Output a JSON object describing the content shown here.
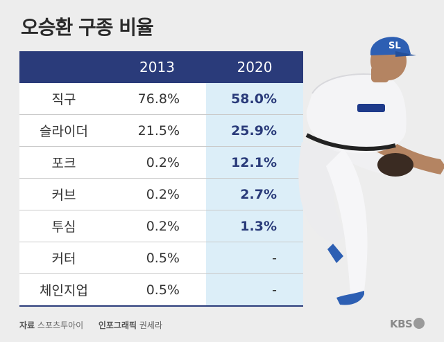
{
  "title": "오승환 구종 비율",
  "chart_data": {
    "type": "table",
    "columns": [
      "",
      "2013",
      "2020"
    ],
    "rows": [
      {
        "pitch": "직구",
        "y2013": "76.8%",
        "y2020": "58.0%"
      },
      {
        "pitch": "슬라이더",
        "y2013": "21.5%",
        "y2020": "25.9%"
      },
      {
        "pitch": "포크",
        "y2013": "0.2%",
        "y2020": "12.1%"
      },
      {
        "pitch": "커브",
        "y2013": "0.2%",
        "y2020": "2.7%"
      },
      {
        "pitch": "투심",
        "y2013": "0.2%",
        "y2020": "1.3%"
      },
      {
        "pitch": "커터",
        "y2013": "0.5%",
        "y2020": "-"
      },
      {
        "pitch": "체인지업",
        "y2013": "0.5%",
        "y2020": "-"
      }
    ]
  },
  "footer": {
    "source_label": "자료",
    "source_value": "스포츠투아이",
    "graphic_label": "인포그래픽",
    "graphic_value": "권세라"
  },
  "logo_text": "KBS",
  "colors": {
    "header": "#2a3b7a",
    "highlight": "#dceef8",
    "jersey_accent": "#1e3a8a"
  }
}
